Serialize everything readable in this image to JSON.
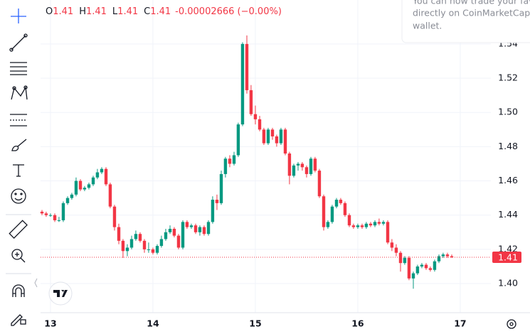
{
  "ohlc_header": {
    "items": [
      {
        "label": "O",
        "value": "1.41"
      },
      {
        "label": "H",
        "value": "1.41"
      },
      {
        "label": "L",
        "value": "1.41"
      },
      {
        "label": "C",
        "value": "1.41"
      }
    ],
    "change": "-0.00002666 (−0.00%)"
  },
  "toast": {
    "lines": [
      "You can now trade your favor",
      "directly on CoinMarketCap us",
      "wallet."
    ]
  },
  "chart_data": {
    "type": "candlestick",
    "up_color": "#089981",
    "down_color": "#f23645",
    "grid": true,
    "xlim": [
      12.903,
      17.299
    ],
    "xticks": [
      13,
      14,
      15,
      16,
      17
    ],
    "ylim": [
      1.383,
      1.5657
    ],
    "yticks": [
      {
        "value": 1.4,
        "label": "1.40"
      },
      1.42,
      1.44,
      1.46,
      1.48,
      {
        "value": 1.5,
        "label": "1.50"
      },
      1.52,
      1.54
    ],
    "last_price": {
      "value": 1.4154,
      "label": "1.41"
    },
    "x": [
      12.917,
      12.958,
      13,
      13.042,
      13.083,
      13.125,
      13.167,
      13.208,
      13.25,
      13.292,
      13.333,
      13.375,
      13.417,
      13.458,
      13.5,
      13.542,
      13.583,
      13.625,
      13.667,
      13.708,
      13.75,
      13.792,
      13.833,
      13.875,
      13.917,
      13.958,
      14,
      14.042,
      14.083,
      14.125,
      14.167,
      14.208,
      14.25,
      14.292,
      14.333,
      14.375,
      14.417,
      14.458,
      14.5,
      14.542,
      14.583,
      14.625,
      14.667,
      14.708,
      14.75,
      14.792,
      14.833,
      14.875,
      14.917,
      14.958,
      15,
      15.042,
      15.083,
      15.125,
      15.167,
      15.208,
      15.25,
      15.292,
      15.333,
      15.375,
      15.417,
      15.458,
      15.5,
      15.542,
      15.583,
      15.625,
      15.667,
      15.708,
      15.75,
      15.792,
      15.833,
      15.875,
      15.917,
      15.958,
      16,
      16.042,
      16.083,
      16.125,
      16.167,
      16.208,
      16.25,
      16.292,
      16.333,
      16.375,
      16.417,
      16.458,
      16.5,
      16.542,
      16.583,
      16.625,
      16.667,
      16.708,
      16.75,
      16.792,
      16.833,
      16.875,
      16.917
    ],
    "candles": [
      [
        1.442,
        1.443,
        1.44,
        1.441
      ],
      [
        1.441,
        1.442,
        1.439,
        1.44
      ],
      [
        1.44,
        1.441,
        1.439,
        1.44
      ],
      [
        1.44,
        1.441,
        1.436,
        1.437
      ],
      [
        1.437,
        1.439,
        1.436,
        1.437
      ],
      [
        1.437,
        1.448,
        1.436,
        1.447
      ],
      [
        1.447,
        1.451,
        1.446,
        1.45
      ],
      [
        1.45,
        1.453,
        1.449,
        1.452
      ],
      [
        1.452,
        1.462,
        1.451,
        1.46
      ],
      [
        1.46,
        1.461,
        1.454,
        1.455
      ],
      [
        1.455,
        1.457,
        1.454,
        1.456
      ],
      [
        1.456,
        1.459,
        1.455,
        1.458
      ],
      [
        1.458,
        1.463,
        1.457,
        1.462
      ],
      [
        1.462,
        1.467,
        1.461,
        1.465
      ],
      [
        1.465,
        1.468,
        1.464,
        1.467
      ],
      [
        1.467,
        1.468,
        1.457,
        1.458
      ],
      [
        1.458,
        1.459,
        1.444,
        1.445
      ],
      [
        1.445,
        1.446,
        1.431,
        1.433
      ],
      [
        1.433,
        1.435,
        1.423,
        1.425
      ],
      [
        1.425,
        1.426,
        1.415,
        1.419
      ],
      [
        1.419,
        1.423,
        1.416,
        1.421
      ],
      [
        1.421,
        1.428,
        1.42,
        1.426
      ],
      [
        1.426,
        1.431,
        1.425,
        1.429
      ],
      [
        1.429,
        1.43,
        1.424,
        1.425
      ],
      [
        1.425,
        1.426,
        1.418,
        1.42
      ],
      [
        1.42,
        1.424,
        1.418,
        1.42
      ],
      [
        1.42,
        1.421,
        1.417,
        1.418
      ],
      [
        1.418,
        1.423,
        1.417,
        1.422
      ],
      [
        1.422,
        1.428,
        1.421,
        1.426
      ],
      [
        1.426,
        1.432,
        1.425,
        1.43
      ],
      [
        1.43,
        1.434,
        1.429,
        1.432
      ],
      [
        1.432,
        1.433,
        1.427,
        1.428
      ],
      [
        1.428,
        1.429,
        1.42,
        1.421
      ],
      [
        1.421,
        1.437,
        1.42,
        1.436
      ],
      [
        1.436,
        1.437,
        1.432,
        1.433
      ],
      [
        1.433,
        1.435,
        1.432,
        1.434
      ],
      [
        1.434,
        1.435,
        1.429,
        1.43
      ],
      [
        1.43,
        1.434,
        1.428,
        1.433
      ],
      [
        1.433,
        1.434,
        1.428,
        1.429
      ],
      [
        1.429,
        1.437,
        1.428,
        1.436
      ],
      [
        1.436,
        1.451,
        1.435,
        1.449
      ],
      [
        1.449,
        1.452,
        1.443,
        1.447
      ],
      [
        1.447,
        1.466,
        1.446,
        1.464
      ],
      [
        1.464,
        1.474,
        1.462,
        1.473
      ],
      [
        1.473,
        1.475,
        1.468,
        1.47
      ],
      [
        1.47,
        1.477,
        1.469,
        1.475
      ],
      [
        1.475,
        1.494,
        1.474,
        1.493
      ],
      [
        1.493,
        1.541,
        1.492,
        1.54
      ],
      [
        1.54,
        1.545,
        1.511,
        1.513
      ],
      [
        1.513,
        1.516,
        1.498,
        1.499
      ],
      [
        1.499,
        1.504,
        1.493,
        1.496
      ],
      [
        1.496,
        1.498,
        1.489,
        1.49
      ],
      [
        1.49,
        1.491,
        1.481,
        1.482
      ],
      [
        1.482,
        1.491,
        1.481,
        1.49
      ],
      [
        1.49,
        1.491,
        1.484,
        1.486
      ],
      [
        1.486,
        1.487,
        1.48,
        1.482
      ],
      [
        1.482,
        1.491,
        1.481,
        1.49
      ],
      [
        1.49,
        1.491,
        1.475,
        1.476
      ],
      [
        1.476,
        1.477,
        1.458,
        1.463
      ],
      [
        1.463,
        1.47,
        1.462,
        1.469
      ],
      [
        1.469,
        1.471,
        1.466,
        1.47
      ],
      [
        1.47,
        1.471,
        1.466,
        1.468
      ],
      [
        1.468,
        1.469,
        1.462,
        1.464
      ],
      [
        1.464,
        1.474,
        1.463,
        1.473
      ],
      [
        1.473,
        1.474,
        1.465,
        1.466
      ],
      [
        1.466,
        1.467,
        1.45,
        1.451
      ],
      [
        1.451,
        1.452,
        1.431,
        1.433
      ],
      [
        1.433,
        1.437,
        1.432,
        1.436
      ],
      [
        1.436,
        1.446,
        1.435,
        1.445
      ],
      [
        1.445,
        1.45,
        1.444,
        1.449
      ],
      [
        1.449,
        1.45,
        1.446,
        1.447
      ],
      [
        1.447,
        1.448,
        1.439,
        1.44
      ],
      [
        1.44,
        1.441,
        1.433,
        1.434
      ],
      [
        1.434,
        1.435,
        1.432,
        1.433
      ],
      [
        1.433,
        1.435,
        1.432,
        1.434
      ],
      [
        1.434,
        1.435,
        1.432,
        1.433
      ],
      [
        1.433,
        1.436,
        1.432,
        1.435
      ],
      [
        1.435,
        1.436,
        1.433,
        1.434
      ],
      [
        1.434,
        1.437,
        1.433,
        1.436
      ],
      [
        1.436,
        1.438,
        1.434,
        1.435
      ],
      [
        1.435,
        1.437,
        1.434,
        1.436
      ],
      [
        1.436,
        1.437,
        1.423,
        1.424
      ],
      [
        1.424,
        1.426,
        1.419,
        1.421
      ],
      [
        1.421,
        1.423,
        1.416,
        1.418
      ],
      [
        1.418,
        1.419,
        1.407,
        1.412
      ],
      [
        1.412,
        1.416,
        1.411,
        1.415
      ],
      [
        1.415,
        1.416,
        1.402,
        1.403
      ],
      [
        1.403,
        1.407,
        1.397,
        1.406
      ],
      [
        1.406,
        1.411,
        1.405,
        1.41
      ],
      [
        1.41,
        1.412,
        1.409,
        1.411
      ],
      [
        1.411,
        1.412,
        1.408,
        1.409
      ],
      [
        1.409,
        1.41,
        1.407,
        1.408
      ],
      [
        1.408,
        1.414,
        1.407,
        1.413
      ],
      [
        1.413,
        1.417,
        1.412,
        1.416
      ],
      [
        1.416,
        1.418,
        1.415,
        1.417
      ],
      [
        1.417,
        1.418,
        1.415,
        1.416
      ],
      [
        1.416,
        1.417,
        1.415,
        1.4154
      ]
    ]
  }
}
